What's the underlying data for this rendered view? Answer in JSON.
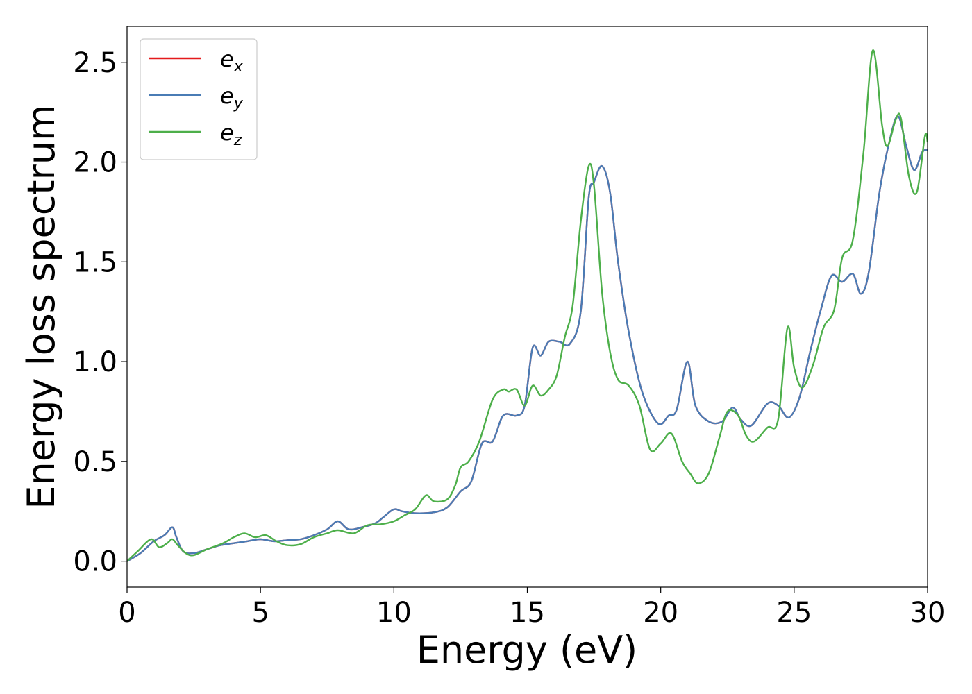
{
  "chart_data": {
    "type": "line",
    "title": "",
    "xlabel": "Energy (eV)",
    "ylabel": "Energy loss spectrum",
    "xlim": [
      0,
      30
    ],
    "ylim": [
      -0.13,
      2.68
    ],
    "xticks": [
      0,
      5,
      10,
      15,
      20,
      25,
      30
    ],
    "xtick_labels": [
      "0",
      "5",
      "10",
      "15",
      "20",
      "25",
      "30"
    ],
    "yticks": [
      0.0,
      0.5,
      1.0,
      1.5,
      2.0,
      2.5
    ],
    "ytick_labels": [
      "0.0",
      "0.5",
      "1.0",
      "1.5",
      "2.0",
      "2.5"
    ],
    "grid": false,
    "legend_position": "top-left",
    "series": [
      {
        "name": "e",
        "sub": "x",
        "color": "#e41a1c",
        "points": [
          [
            0,
            0
          ],
          [
            0.5,
            0.04
          ],
          [
            1.0,
            0.1
          ],
          [
            1.4,
            0.13
          ],
          [
            1.7,
            0.17
          ],
          [
            1.85,
            0.12
          ],
          [
            2.1,
            0.05
          ],
          [
            2.5,
            0.04
          ],
          [
            3.0,
            0.06
          ],
          [
            3.5,
            0.08
          ],
          [
            4.0,
            0.09
          ],
          [
            4.5,
            0.1
          ],
          [
            5.0,
            0.11
          ],
          [
            5.5,
            0.1
          ],
          [
            6.0,
            0.105
          ],
          [
            6.5,
            0.11
          ],
          [
            7.0,
            0.13
          ],
          [
            7.5,
            0.16
          ],
          [
            7.9,
            0.2
          ],
          [
            8.3,
            0.16
          ],
          [
            8.8,
            0.17
          ],
          [
            9.3,
            0.19
          ],
          [
            9.6,
            0.22
          ],
          [
            10.0,
            0.26
          ],
          [
            10.3,
            0.25
          ],
          [
            10.8,
            0.24
          ],
          [
            11.5,
            0.245
          ],
          [
            12.0,
            0.27
          ],
          [
            12.5,
            0.35
          ],
          [
            12.9,
            0.4
          ],
          [
            13.3,
            0.59
          ],
          [
            13.7,
            0.6
          ],
          [
            14.1,
            0.73
          ],
          [
            14.6,
            0.73
          ],
          [
            14.9,
            0.78
          ],
          [
            15.2,
            1.07
          ],
          [
            15.5,
            1.03
          ],
          [
            15.8,
            1.1
          ],
          [
            16.2,
            1.1
          ],
          [
            16.6,
            1.09
          ],
          [
            17.0,
            1.25
          ],
          [
            17.3,
            1.82
          ],
          [
            17.5,
            1.9
          ],
          [
            17.8,
            1.98
          ],
          [
            18.1,
            1.85
          ],
          [
            18.4,
            1.5
          ],
          [
            18.8,
            1.15
          ],
          [
            19.3,
            0.85
          ],
          [
            19.9,
            0.69
          ],
          [
            20.3,
            0.73
          ],
          [
            20.6,
            0.76
          ],
          [
            21.0,
            1.0
          ],
          [
            21.3,
            0.78
          ],
          [
            21.8,
            0.7
          ],
          [
            22.3,
            0.7
          ],
          [
            22.7,
            0.77
          ],
          [
            23.0,
            0.71
          ],
          [
            23.4,
            0.68
          ],
          [
            24.0,
            0.79
          ],
          [
            24.4,
            0.78
          ],
          [
            24.8,
            0.72
          ],
          [
            25.2,
            0.82
          ],
          [
            25.6,
            1.05
          ],
          [
            26.0,
            1.26
          ],
          [
            26.4,
            1.43
          ],
          [
            26.8,
            1.4
          ],
          [
            27.2,
            1.44
          ],
          [
            27.5,
            1.34
          ],
          [
            27.8,
            1.45
          ],
          [
            28.2,
            1.85
          ],
          [
            28.6,
            2.12
          ],
          [
            28.9,
            2.23
          ],
          [
            29.2,
            2.08
          ],
          [
            29.5,
            1.96
          ],
          [
            29.8,
            2.05
          ],
          [
            30.0,
            2.06
          ]
        ]
      },
      {
        "name": "e",
        "sub": "y",
        "color": "#4a7cb5",
        "points": [
          [
            0,
            0
          ],
          [
            0.5,
            0.04
          ],
          [
            1.0,
            0.1
          ],
          [
            1.4,
            0.13
          ],
          [
            1.7,
            0.17
          ],
          [
            1.85,
            0.12
          ],
          [
            2.1,
            0.05
          ],
          [
            2.5,
            0.04
          ],
          [
            3.0,
            0.06
          ],
          [
            3.5,
            0.08
          ],
          [
            4.0,
            0.09
          ],
          [
            4.5,
            0.1
          ],
          [
            5.0,
            0.11
          ],
          [
            5.5,
            0.1
          ],
          [
            6.0,
            0.105
          ],
          [
            6.5,
            0.11
          ],
          [
            7.0,
            0.13
          ],
          [
            7.5,
            0.16
          ],
          [
            7.9,
            0.2
          ],
          [
            8.3,
            0.16
          ],
          [
            8.8,
            0.17
          ],
          [
            9.3,
            0.19
          ],
          [
            9.6,
            0.22
          ],
          [
            10.0,
            0.26
          ],
          [
            10.3,
            0.25
          ],
          [
            10.8,
            0.24
          ],
          [
            11.5,
            0.245
          ],
          [
            12.0,
            0.27
          ],
          [
            12.5,
            0.35
          ],
          [
            12.9,
            0.4
          ],
          [
            13.3,
            0.59
          ],
          [
            13.7,
            0.6
          ],
          [
            14.1,
            0.73
          ],
          [
            14.6,
            0.73
          ],
          [
            14.9,
            0.78
          ],
          [
            15.2,
            1.07
          ],
          [
            15.5,
            1.03
          ],
          [
            15.8,
            1.1
          ],
          [
            16.2,
            1.1
          ],
          [
            16.6,
            1.09
          ],
          [
            17.0,
            1.25
          ],
          [
            17.3,
            1.82
          ],
          [
            17.5,
            1.9
          ],
          [
            17.8,
            1.98
          ],
          [
            18.1,
            1.85
          ],
          [
            18.4,
            1.5
          ],
          [
            18.8,
            1.15
          ],
          [
            19.3,
            0.85
          ],
          [
            19.9,
            0.69
          ],
          [
            20.3,
            0.73
          ],
          [
            20.6,
            0.76
          ],
          [
            21.0,
            1.0
          ],
          [
            21.3,
            0.78
          ],
          [
            21.8,
            0.7
          ],
          [
            22.3,
            0.7
          ],
          [
            22.7,
            0.77
          ],
          [
            23.0,
            0.71
          ],
          [
            23.4,
            0.68
          ],
          [
            24.0,
            0.79
          ],
          [
            24.4,
            0.78
          ],
          [
            24.8,
            0.72
          ],
          [
            25.2,
            0.82
          ],
          [
            25.6,
            1.05
          ],
          [
            26.0,
            1.26
          ],
          [
            26.4,
            1.43
          ],
          [
            26.8,
            1.4
          ],
          [
            27.2,
            1.44
          ],
          [
            27.5,
            1.34
          ],
          [
            27.8,
            1.45
          ],
          [
            28.2,
            1.85
          ],
          [
            28.6,
            2.12
          ],
          [
            28.9,
            2.23
          ],
          [
            29.2,
            2.08
          ],
          [
            29.5,
            1.96
          ],
          [
            29.8,
            2.05
          ],
          [
            30.0,
            2.06
          ]
        ]
      },
      {
        "name": "e",
        "sub": "z",
        "color": "#4daf4a",
        "points": [
          [
            0,
            0
          ],
          [
            0.4,
            0.05
          ],
          [
            0.9,
            0.11
          ],
          [
            1.2,
            0.07
          ],
          [
            1.5,
            0.09
          ],
          [
            1.7,
            0.11
          ],
          [
            1.9,
            0.08
          ],
          [
            2.2,
            0.04
          ],
          [
            2.5,
            0.03
          ],
          [
            3.0,
            0.06
          ],
          [
            3.6,
            0.09
          ],
          [
            4.0,
            0.12
          ],
          [
            4.4,
            0.14
          ],
          [
            4.8,
            0.12
          ],
          [
            5.2,
            0.13
          ],
          [
            5.6,
            0.1
          ],
          [
            6.0,
            0.08
          ],
          [
            6.5,
            0.085
          ],
          [
            7.0,
            0.12
          ],
          [
            7.5,
            0.14
          ],
          [
            7.9,
            0.155
          ],
          [
            8.5,
            0.14
          ],
          [
            9.0,
            0.18
          ],
          [
            9.5,
            0.185
          ],
          [
            10.0,
            0.2
          ],
          [
            10.4,
            0.23
          ],
          [
            10.8,
            0.26
          ],
          [
            11.2,
            0.33
          ],
          [
            11.5,
            0.3
          ],
          [
            12.0,
            0.31
          ],
          [
            12.3,
            0.38
          ],
          [
            12.5,
            0.47
          ],
          [
            12.8,
            0.5
          ],
          [
            13.2,
            0.6
          ],
          [
            13.7,
            0.81
          ],
          [
            14.1,
            0.86
          ],
          [
            14.3,
            0.85
          ],
          [
            14.6,
            0.86
          ],
          [
            14.9,
            0.78
          ],
          [
            15.2,
            0.88
          ],
          [
            15.5,
            0.83
          ],
          [
            15.8,
            0.86
          ],
          [
            16.1,
            0.93
          ],
          [
            16.4,
            1.12
          ],
          [
            16.7,
            1.28
          ],
          [
            17.0,
            1.7
          ],
          [
            17.3,
            1.98
          ],
          [
            17.5,
            1.88
          ],
          [
            17.8,
            1.35
          ],
          [
            18.1,
            1.05
          ],
          [
            18.4,
            0.91
          ],
          [
            18.8,
            0.88
          ],
          [
            19.2,
            0.78
          ],
          [
            19.6,
            0.56
          ],
          [
            20.0,
            0.59
          ],
          [
            20.4,
            0.64
          ],
          [
            20.8,
            0.5
          ],
          [
            21.1,
            0.44
          ],
          [
            21.4,
            0.39
          ],
          [
            21.8,
            0.44
          ],
          [
            22.2,
            0.62
          ],
          [
            22.5,
            0.75
          ],
          [
            22.9,
            0.73
          ],
          [
            23.2,
            0.63
          ],
          [
            23.5,
            0.6
          ],
          [
            24.0,
            0.67
          ],
          [
            24.4,
            0.71
          ],
          [
            24.75,
            1.17
          ],
          [
            25.0,
            0.97
          ],
          [
            25.3,
            0.87
          ],
          [
            25.7,
            0.98
          ],
          [
            26.1,
            1.17
          ],
          [
            26.5,
            1.26
          ],
          [
            26.8,
            1.52
          ],
          [
            27.2,
            1.61
          ],
          [
            27.6,
            2.05
          ],
          [
            27.95,
            2.56
          ],
          [
            28.3,
            2.18
          ],
          [
            28.5,
            2.08
          ],
          [
            28.8,
            2.21
          ],
          [
            29.0,
            2.22
          ],
          [
            29.3,
            1.93
          ],
          [
            29.6,
            1.85
          ],
          [
            29.9,
            2.13
          ],
          [
            30.0,
            2.1
          ]
        ]
      }
    ]
  }
}
